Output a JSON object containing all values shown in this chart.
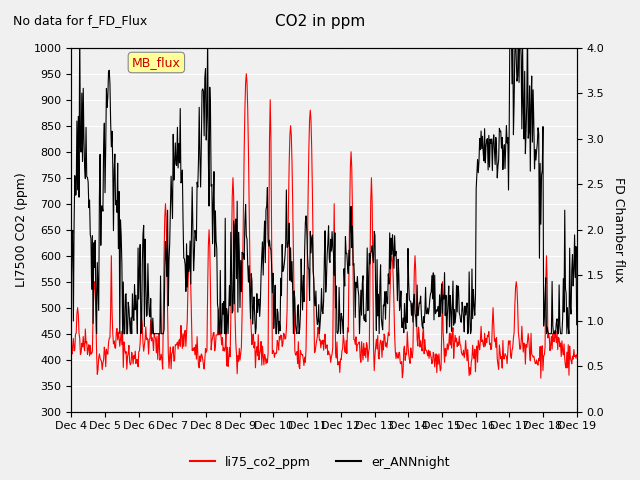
{
  "title": "CO2 in ppm",
  "subtitle": "No data for f_FD_Flux",
  "ylabel_left": "LI7500 CO2 (ppm)",
  "ylabel_right": "FD Chamber flux",
  "ylim_left": [
    300,
    1000
  ],
  "ylim_right": [
    0.0,
    4.0
  ],
  "yticks_left": [
    300,
    350,
    400,
    450,
    500,
    550,
    600,
    650,
    700,
    750,
    800,
    850,
    900,
    950,
    1000
  ],
  "yticks_right": [
    0.0,
    0.5,
    1.0,
    1.5,
    2.0,
    2.5,
    3.0,
    3.5,
    4.0
  ],
  "xticklabels": [
    "Dec 4",
    "Dec 5",
    "Dec 6",
    "Dec 7",
    "Dec 8",
    "Dec 9",
    "Dec 10",
    "Dec 11",
    "Dec 12",
    "Dec 13",
    "Dec 14",
    "Dec 15",
    "Dec 16",
    "Dec 17",
    "Dec 18",
    "Dec 19"
  ],
  "legend_label_red": "li75_co2_ppm",
  "legend_label_black": "er_ANNnight",
  "line_color_red": "#ff0000",
  "line_color_black": "#000000",
  "mb_flux_box_color": "#ffff99",
  "mb_flux_text_color": "#cc0000",
  "background_color": "#f0f0f0",
  "grid_color": "#ffffff"
}
